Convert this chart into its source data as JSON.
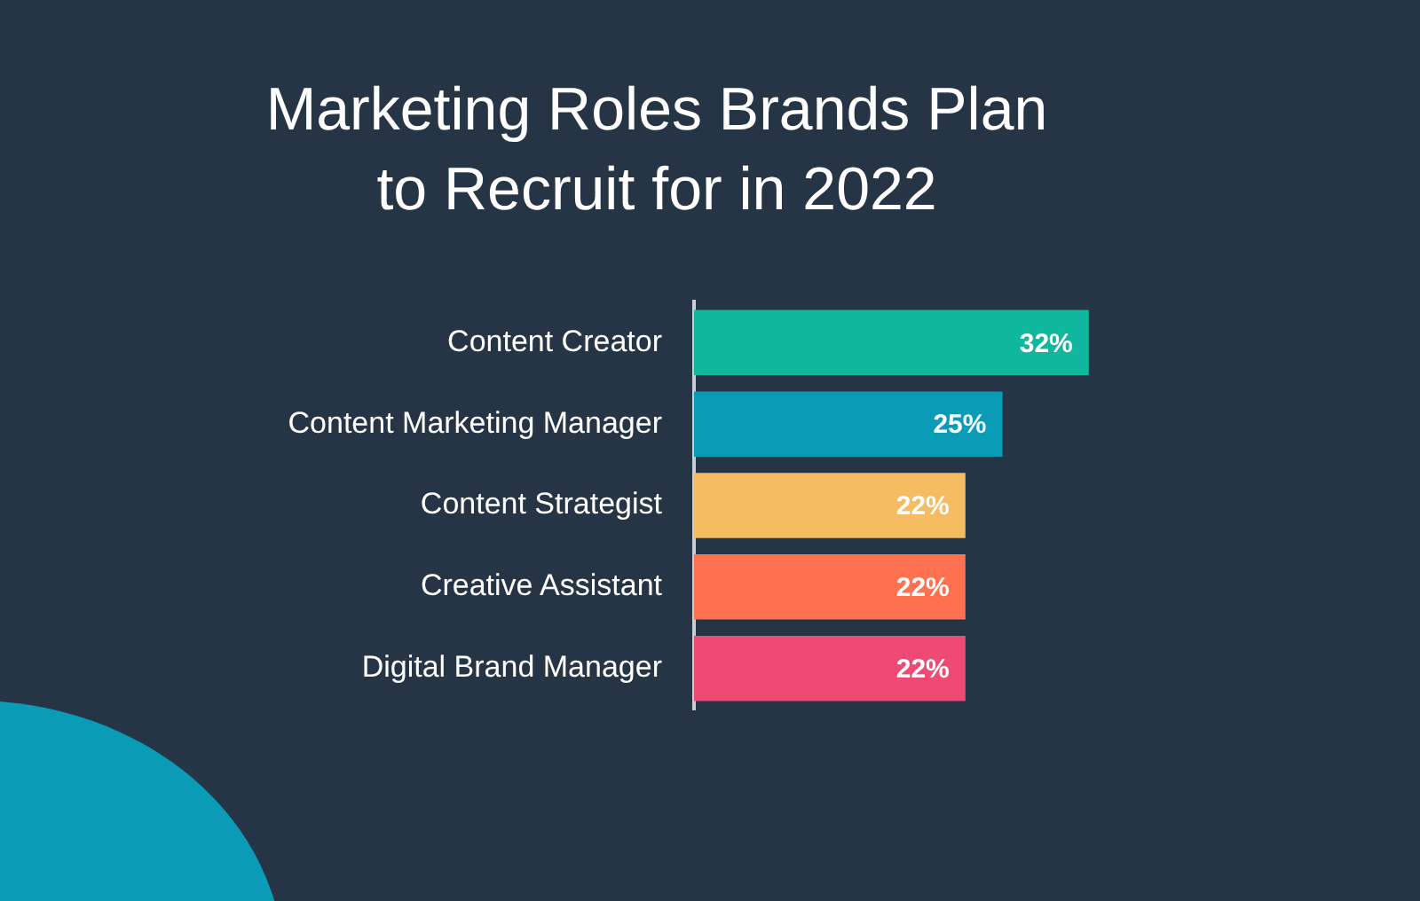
{
  "chart_data": {
    "type": "bar",
    "orientation": "horizontal",
    "title": "Marketing Roles Brands Plan to Recruit for in 2022",
    "categories": [
      "Content Creator",
      "Content Marketing Manager",
      "Content Strategist",
      "Creative Assistant",
      "Digital Brand Manager"
    ],
    "values": [
      32,
      25,
      22,
      22,
      22
    ],
    "colors": [
      "#0fb79c",
      "#0a9bb7",
      "#f5bc62",
      "#ff7150",
      "#ef4a74"
    ],
    "value_labels": [
      "32%",
      "25%",
      "22%",
      "22%",
      "22%"
    ],
    "tick_labels": "y",
    "grid": false,
    "legend": false
  }
}
